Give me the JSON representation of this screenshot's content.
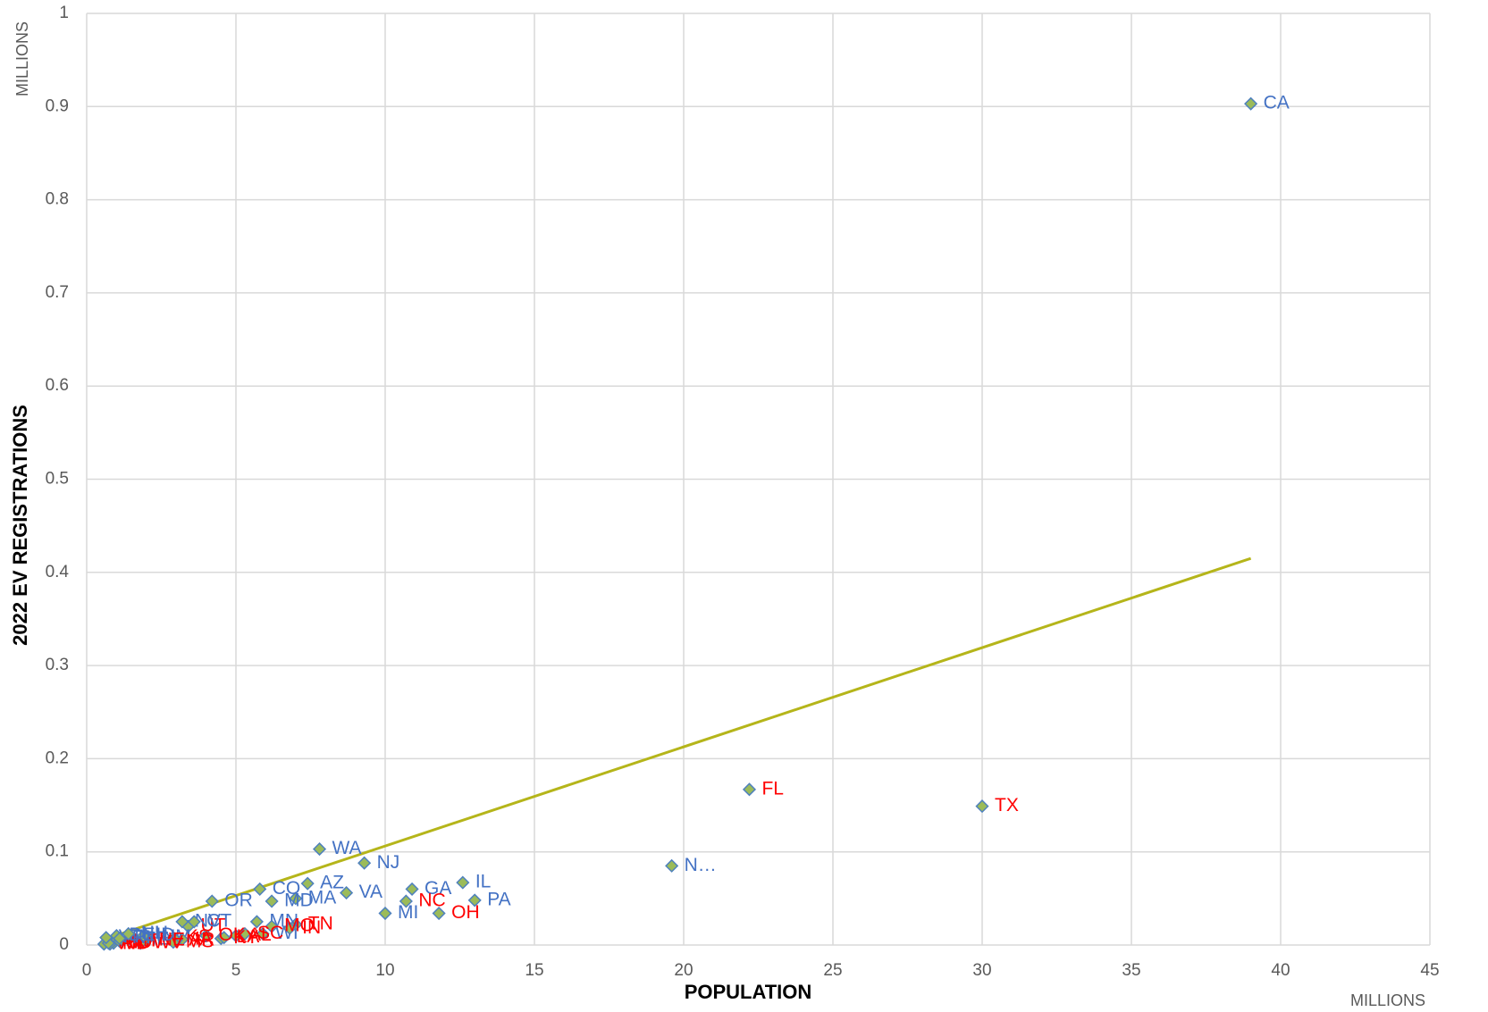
{
  "chart_data": {
    "type": "scatter",
    "y_label": "2022 EV REGISTRATIONS",
    "x_label": "POPULATION",
    "y_unit": "MILLIONS",
    "x_unit": "MILLIONS",
    "xlim": [
      0,
      45
    ],
    "ylim": [
      0,
      1
    ],
    "xticks": [
      0,
      5,
      10,
      15,
      20,
      25,
      30,
      35,
      40,
      45
    ],
    "yticks": [
      0,
      0.1,
      0.2,
      0.3,
      0.4,
      0.5,
      0.6,
      0.7,
      0.8,
      0.9,
      1
    ],
    "grid": true,
    "marker_color": "#9bbb59",
    "marker_edge": "#4f81bd",
    "points": [
      {
        "label": "CA",
        "x": 39.0,
        "y": 0.903,
        "label_color": "#4472c4"
      },
      {
        "label": "TX",
        "x": 30.0,
        "y": 0.149,
        "label_color": "#ff0000"
      },
      {
        "label": "FL",
        "x": 22.2,
        "y": 0.167,
        "label_color": "#ff0000"
      },
      {
        "label": "N…",
        "x": 19.6,
        "y": 0.085,
        "label_color": "#4472c4"
      },
      {
        "label": "WA",
        "x": 7.8,
        "y": 0.103,
        "label_color": "#4472c4"
      },
      {
        "label": "NJ",
        "x": 9.3,
        "y": 0.088,
        "label_color": "#4472c4"
      },
      {
        "label": "IL",
        "x": 12.6,
        "y": 0.067,
        "label_color": "#4472c4"
      },
      {
        "label": "PA",
        "x": 13.0,
        "y": 0.048,
        "label_color": "#4472c4"
      },
      {
        "label": "GA",
        "x": 10.9,
        "y": 0.06,
        "label_color": "#4472c4"
      },
      {
        "label": "NC",
        "x": 10.7,
        "y": 0.047,
        "label_color": "#ff0000"
      },
      {
        "label": "OH",
        "x": 11.8,
        "y": 0.034,
        "label_color": "#ff0000"
      },
      {
        "label": "MI",
        "x": 10.0,
        "y": 0.034,
        "label_color": "#4472c4"
      },
      {
        "label": "VA",
        "x": 8.7,
        "y": 0.056,
        "label_color": "#4472c4"
      },
      {
        "label": "AZ",
        "x": 7.4,
        "y": 0.066,
        "label_color": "#4472c4"
      },
      {
        "label": "MA",
        "x": 7.0,
        "y": 0.05,
        "label_color": "#4472c4"
      },
      {
        "label": "MD",
        "x": 6.2,
        "y": 0.047,
        "label_color": "#4472c4"
      },
      {
        "label": "CO",
        "x": 5.8,
        "y": 0.06,
        "label_color": "#4472c4"
      },
      {
        "label": "OR",
        "x": 4.2,
        "y": 0.047,
        "label_color": "#4472c4"
      },
      {
        "label": "WI",
        "x": 5.9,
        "y": 0.012,
        "label_color": "#4472c4"
      },
      {
        "label": "TN",
        "x": 7.0,
        "y": 0.022,
        "label_color": "#ff0000"
      },
      {
        "label": "IN",
        "x": 6.8,
        "y": 0.018,
        "label_color": "#ff0000"
      },
      {
        "label": "MN",
        "x": 5.7,
        "y": 0.025,
        "label_color": "#4472c4"
      },
      {
        "label": "MO",
        "x": 6.2,
        "y": 0.02,
        "label_color": "#ff0000"
      },
      {
        "label": "KS",
        "x": 2.9,
        "y": 0.008,
        "label_color": "#ff0000"
      },
      {
        "label": "SC",
        "x": 5.3,
        "y": 0.012,
        "label_color": "#ff0000"
      },
      {
        "label": "AL",
        "x": 5.0,
        "y": 0.01,
        "label_color": "#ff0000"
      },
      {
        "label": "KY",
        "x": 4.5,
        "y": 0.007,
        "label_color": "#ff0000"
      },
      {
        "label": "LA",
        "x": 4.6,
        "y": 0.008,
        "label_color": "#ff0000"
      },
      {
        "label": "OK",
        "x": 4.0,
        "y": 0.01,
        "label_color": "#ff0000"
      },
      {
        "label": "UT",
        "x": 3.4,
        "y": 0.02,
        "label_color": "#ff0000"
      },
      {
        "label": "NV",
        "x": 3.2,
        "y": 0.025,
        "label_color": "#4472c4"
      },
      {
        "label": "NM",
        "x": 2.1,
        "y": 0.008,
        "label_color": "#4472c4"
      },
      {
        "label": "ME",
        "x": 1.4,
        "y": 0.006,
        "label_color": "#4472c4"
      },
      {
        "label": "IA",
        "x": 3.2,
        "y": 0.006,
        "label_color": "#ff0000"
      },
      {
        "label": "AR",
        "x": 3.0,
        "y": 0.005,
        "label_color": "#ff0000"
      },
      {
        "label": "MS",
        "x": 2.9,
        "y": 0.003,
        "label_color": "#ff0000"
      },
      {
        "label": "NE",
        "x": 2.0,
        "y": 0.005,
        "label_color": "#ff0000"
      },
      {
        "label": "WV",
        "x": 1.8,
        "y": 0.002,
        "label_color": "#ff0000"
      },
      {
        "label": "SD",
        "x": 0.9,
        "y": 0.002,
        "label_color": "#ff0000"
      },
      {
        "label": "ND",
        "x": 0.78,
        "y": 0.001,
        "label_color": "#ff0000"
      },
      {
        "label": "MT",
        "x": 1.1,
        "y": 0.004,
        "label_color": "#ff0000"
      },
      {
        "label": "WY",
        "x": 0.58,
        "y": 0.001,
        "label_color": "#ff0000"
      },
      {
        "label": "AK",
        "x": 0.73,
        "y": 0.002,
        "label_color": "#ff0000"
      },
      {
        "label": "ID",
        "x": 1.9,
        "y": 0.01,
        "label_color": "#4472c4"
      },
      {
        "label": "NH",
        "x": 1.4,
        "y": 0.012,
        "label_color": "#4472c4"
      },
      {
        "label": "VT",
        "x": 0.65,
        "y": 0.008,
        "label_color": "#4472c4"
      },
      {
        "label": "DE",
        "x": 1.0,
        "y": 0.01,
        "label_color": "#4472c4"
      },
      {
        "label": "RI",
        "x": 1.1,
        "y": 0.007,
        "label_color": "#4472c4"
      },
      {
        "label": "HI",
        "x": 1.4,
        "y": 0.012,
        "label_color": "#4472c4"
      },
      {
        "label": "CT",
        "x": 3.6,
        "y": 0.025,
        "label_color": "#4472c4"
      }
    ],
    "trendline": {
      "color": "#b5b51a",
      "x": [
        0.58,
        39.0
      ],
      "y": [
        0.006,
        0.415
      ]
    }
  }
}
